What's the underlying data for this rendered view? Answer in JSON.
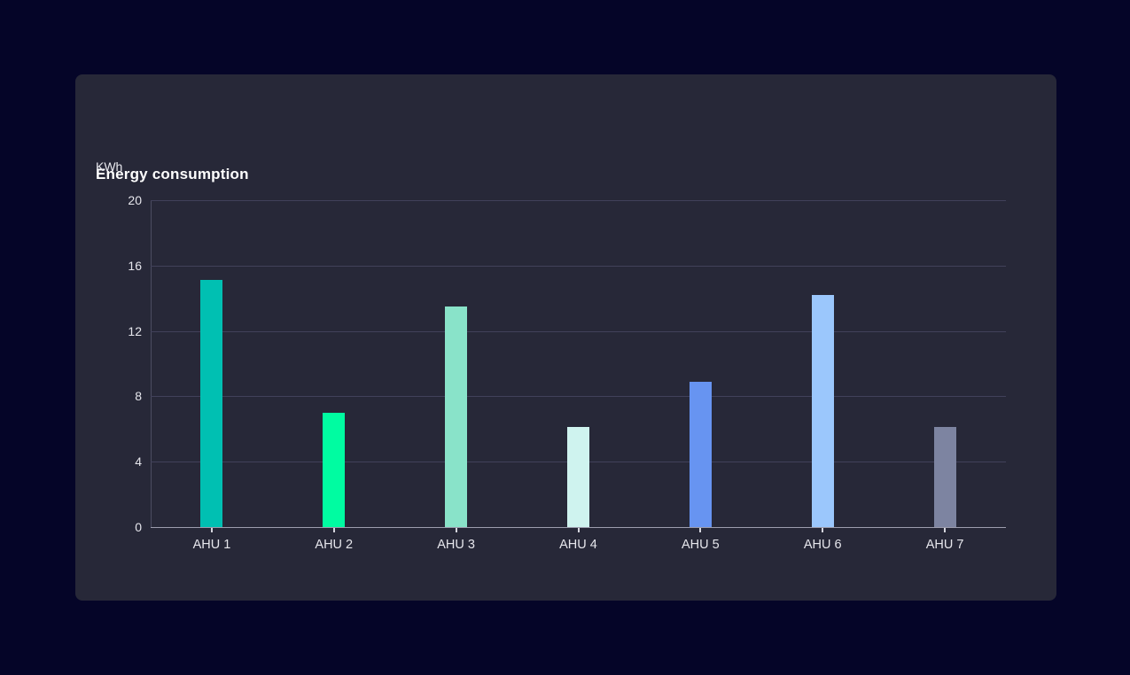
{
  "card": {
    "title": "Energy consumption",
    "unit_label": "KWh"
  },
  "colors": {
    "page_background": "#050528",
    "card_background": "#272838",
    "title_text": "#ffffff",
    "axis_text": "#e6e6ec",
    "gridline": "#41415a",
    "left_spine": "#4c4c62",
    "bottom_axis": "#9d9dae",
    "tick_mark": "#d6d6de"
  },
  "chart_data": {
    "type": "bar",
    "title": "Energy consumption",
    "xlabel": "",
    "ylabel": "KWh",
    "categories": [
      "AHU 1",
      "AHU 2",
      "AHU 3",
      "AHU 4",
      "AHU 5",
      "AHU 6",
      "AHU 7"
    ],
    "values": [
      15.1,
      7.0,
      13.5,
      6.1,
      8.9,
      14.2,
      6.1
    ],
    "bar_colors": [
      "#00C0B2",
      "#00FCA1",
      "#89E3C9",
      "#CFF3EF",
      "#6794F1",
      "#9BC7FC",
      "#7D84A1"
    ],
    "ylim": [
      0,
      20
    ],
    "yticks": [
      0,
      4,
      8,
      12,
      16,
      20
    ],
    "grid": "horizontal",
    "legend_position": "none"
  }
}
